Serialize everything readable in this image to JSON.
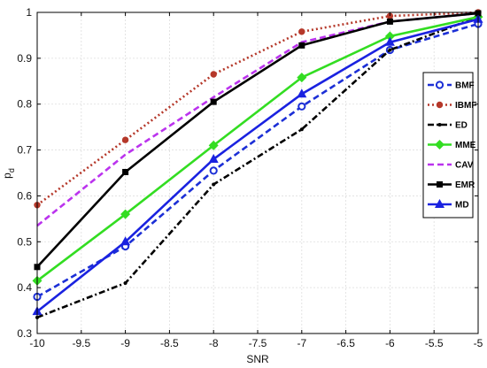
{
  "chart_data": {
    "type": "line",
    "title": "",
    "xlabel": "SNR",
    "ylabel": "p",
    "ylabel_sub": "d",
    "xlim": [
      -10,
      -5
    ],
    "ylim": [
      0.3,
      1
    ],
    "xticks": [
      "-10",
      "-9.5",
      "-9",
      "-8.5",
      "-8",
      "-7.5",
      "-7",
      "-6.5",
      "-6",
      "-5.5",
      "-5"
    ],
    "yticks": [
      "0.3",
      "0.4",
      "0.5",
      "0.6",
      "0.7",
      "0.8",
      "0.9",
      "1"
    ],
    "grid": true,
    "legend_position": "right",
    "x": [
      -10,
      -9,
      -8,
      -7,
      -6,
      -5
    ],
    "series": [
      {
        "name": "BMF",
        "color": "#1c2fd6",
        "dash": "dash",
        "marker": "circle-open",
        "values": [
          0.38,
          0.49,
          0.655,
          0.795,
          0.918,
          0.975
        ]
      },
      {
        "name": "IBMF",
        "color": "#b5382a",
        "dash": "dot",
        "marker": "circle-filled",
        "values": [
          0.58,
          0.722,
          0.865,
          0.958,
          0.992,
          1.0
        ]
      },
      {
        "name": "ED",
        "color": "#000000",
        "dash": "dashdot",
        "marker": "point",
        "values": [
          0.335,
          0.41,
          0.625,
          0.745,
          0.918,
          0.99
        ]
      },
      {
        "name": "MME",
        "color": "#33dd22",
        "dash": "solid",
        "marker": "diamond",
        "values": [
          0.415,
          0.56,
          0.71,
          0.858,
          0.948,
          0.99
        ]
      },
      {
        "name": "CAV",
        "color": "#bb33ee",
        "dash": "dash",
        "marker": "none",
        "values": [
          0.535,
          0.69,
          0.815,
          0.935,
          0.98,
          0.998
        ]
      },
      {
        "name": "EMR",
        "color": "#000000",
        "dash": "solid",
        "marker": "square",
        "values": [
          0.445,
          0.652,
          0.805,
          0.928,
          0.98,
          0.998
        ]
      },
      {
        "name": "MD",
        "color": "#1a22e0",
        "dash": "solid",
        "marker": "triangle",
        "values": [
          0.348,
          0.5,
          0.68,
          0.822,
          0.935,
          0.985
        ]
      }
    ]
  }
}
